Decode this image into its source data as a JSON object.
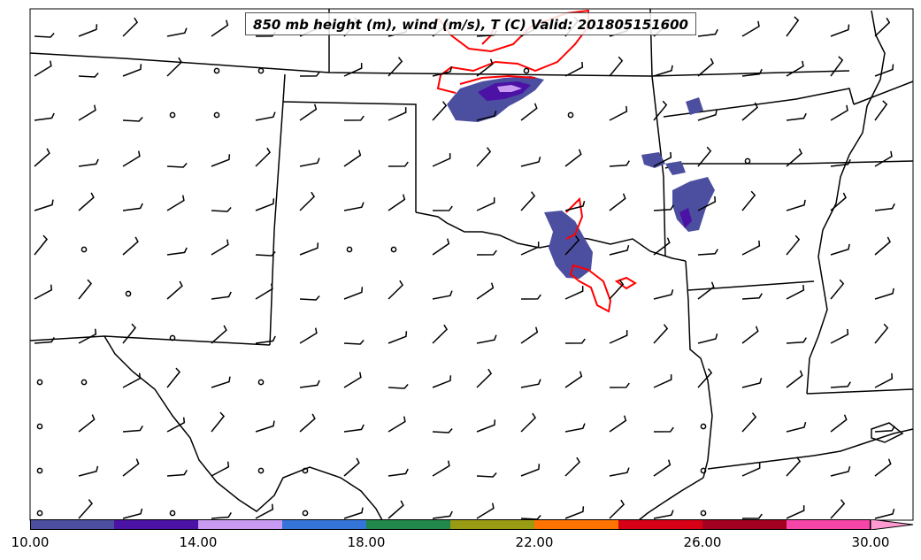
{
  "title": "850 mb height (m), wind (m/s), T (C) Valid: 201805151600",
  "colorbar": {
    "colors": [
      "#4c4fa0",
      "#4b12a5",
      "#c89af2",
      "#3575d9",
      "#21874a",
      "#999c12",
      "#ff7300",
      "#d70017",
      "#a3001f",
      "#f645a9",
      "#ff9ad2"
    ],
    "tick_labels": [
      "10.00",
      "14.00",
      "18.00",
      "22.00",
      "26.00",
      "30.00"
    ],
    "range": [
      10,
      30
    ],
    "interval": 2
  },
  "map": {
    "features": [
      "state-borders",
      "coastline",
      "wind-barbs",
      "temperature-contour",
      "shaded-field"
    ],
    "contour_color": "#ff0000"
  }
}
